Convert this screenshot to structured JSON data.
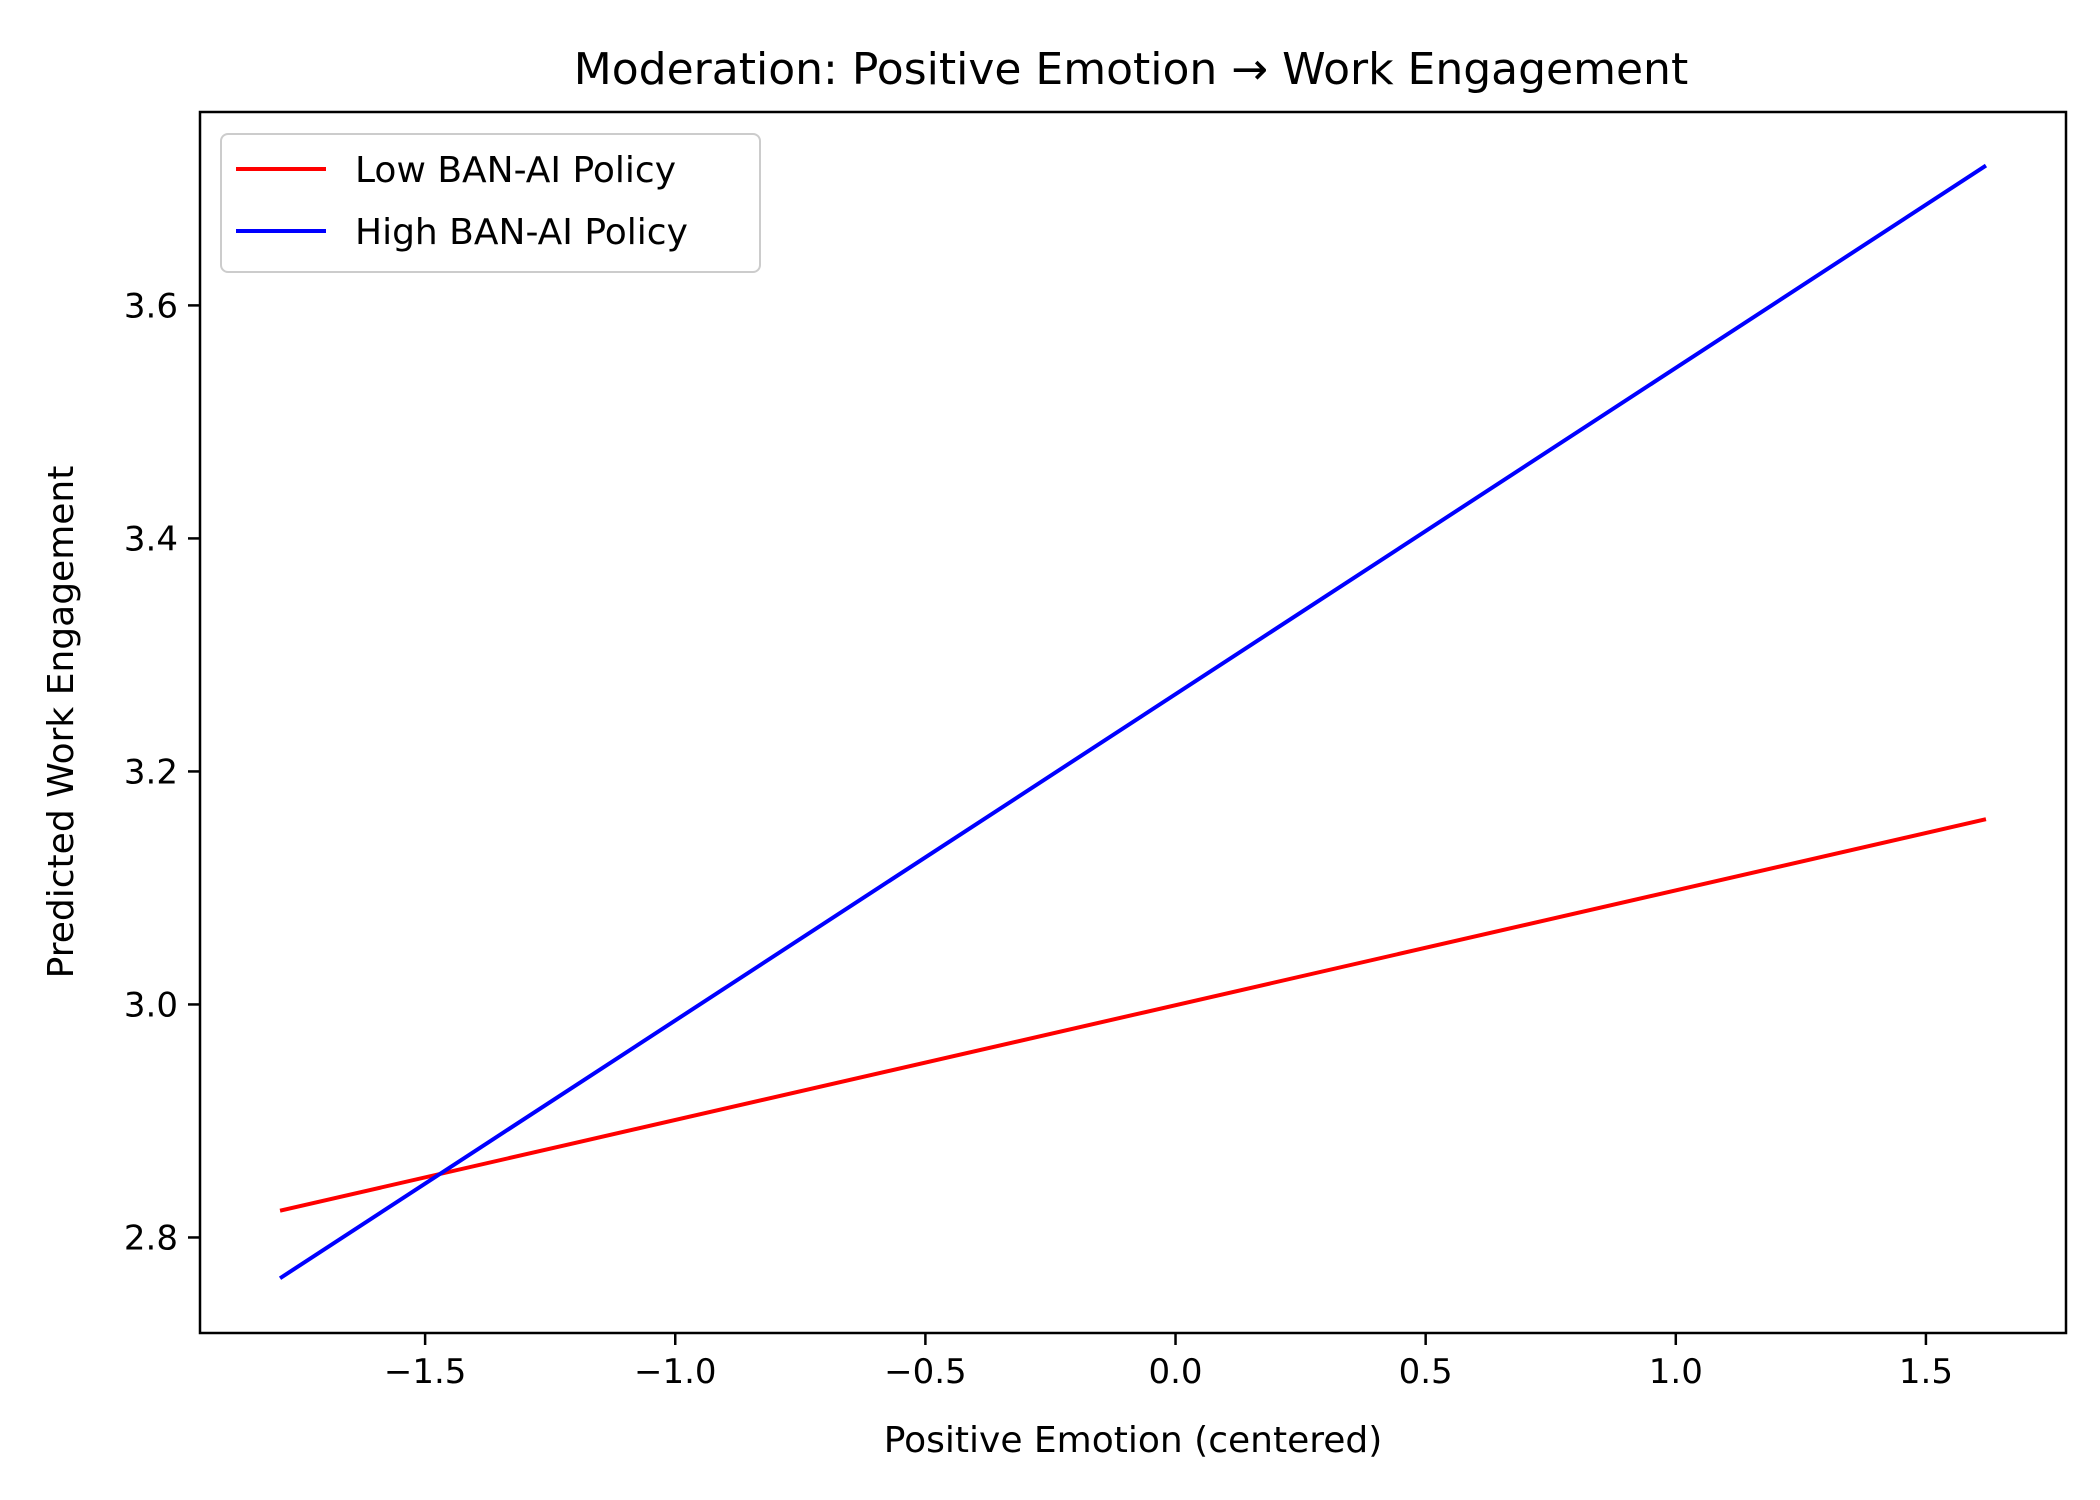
{
  "chart_data": {
    "type": "line",
    "title": "Moderation: Positive Emotion → Work Engagement",
    "xlabel": "Positive Emotion (centered)",
    "ylabel": "Predicted Work Engagement",
    "xlim": [
      -1.95,
      1.78
    ],
    "ylim": [
      2.718,
      3.766
    ],
    "xticks": [
      -1.5,
      -1.0,
      -0.5,
      0.0,
      0.5,
      1.0,
      1.5
    ],
    "xtick_labels": [
      "−1.5",
      "−1.0",
      "−0.5",
      "0.0",
      "0.5",
      "1.0",
      "1.5"
    ],
    "yticks": [
      2.8,
      3.0,
      3.2,
      3.4,
      3.6
    ],
    "ytick_labels": [
      "2.8",
      "3.0",
      "3.2",
      "3.4",
      "3.6"
    ],
    "grid": false,
    "legend_position": "top-left",
    "series": [
      {
        "name": "Low BAN-AI Policy",
        "color": "#ff0000",
        "x": [
          -1.79,
          1.62
        ],
        "y": [
          2.823,
          3.159
        ]
      },
      {
        "name": "High BAN-AI Policy",
        "color": "#0000ff",
        "x": [
          -1.79,
          1.62
        ],
        "y": [
          2.765,
          3.72
        ]
      }
    ]
  }
}
